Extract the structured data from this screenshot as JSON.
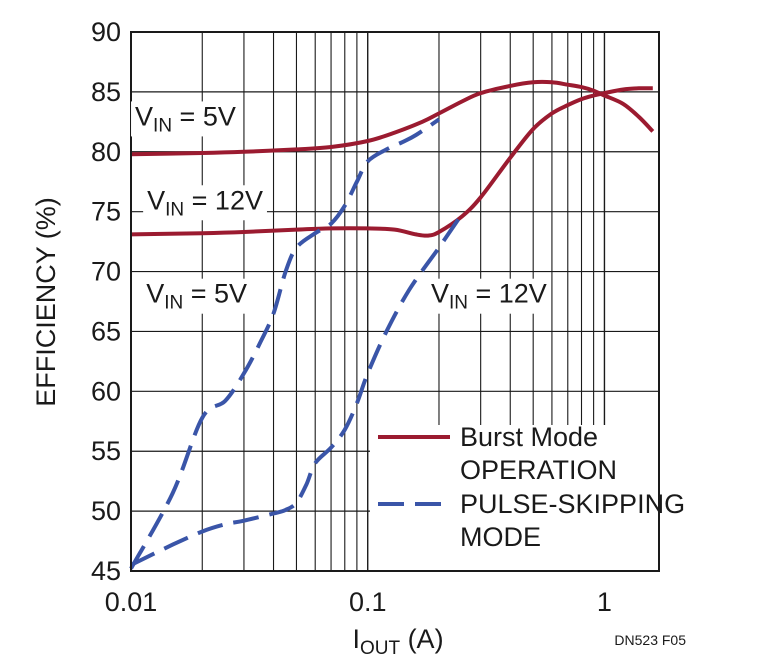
{
  "chart_data": {
    "type": "line",
    "xlabel": {
      "main": "I",
      "sub": "OUT",
      "unit": " (A)"
    },
    "ylabel": "EFFICIENCY (%)",
    "x_scale": "log",
    "xlim": [
      0.01,
      1.7
    ],
    "ylim": [
      45,
      90
    ],
    "x_ticks": [
      {
        "value": 0.01,
        "label": "0.01"
      },
      {
        "value": 0.1,
        "label": "0.1"
      },
      {
        "value": 1,
        "label": "1"
      }
    ],
    "y_ticks": [
      {
        "value": 45,
        "label": "45"
      },
      {
        "value": 50,
        "label": "50"
      },
      {
        "value": 55,
        "label": "55"
      },
      {
        "value": 60,
        "label": "60"
      },
      {
        "value": 65,
        "label": "65"
      },
      {
        "value": 70,
        "label": "70"
      },
      {
        "value": 75,
        "label": "75"
      },
      {
        "value": 80,
        "label": "80"
      },
      {
        "value": 85,
        "label": "85"
      },
      {
        "value": 90,
        "label": "90"
      }
    ],
    "grid": true,
    "legend_position": "bottom-right",
    "legend": [
      {
        "style": "solid",
        "line1": "Burst Mode",
        "line2": "OPERATION"
      },
      {
        "style": "dashed",
        "line1": "PULSE-SKIPPING",
        "line2": "MODE"
      }
    ],
    "annotations": [
      {
        "pre": "V",
        "sub": "IN",
        "post": " = 5V",
        "anchor_x": 0.0104,
        "anchor_y": 82.2
      },
      {
        "pre": "V",
        "sub": "IN",
        "post": " = 12V",
        "anchor_x": 0.0117,
        "anchor_y": 75.2
      },
      {
        "pre": "V",
        "sub": "IN",
        "post": " = 5V",
        "anchor_x": 0.0116,
        "anchor_y": 67.4
      },
      {
        "pre": "V",
        "sub": "IN",
        "post": " = 12V",
        "anchor_x": 0.185,
        "anchor_y": 67.4
      }
    ],
    "series": [
      {
        "style": "solid",
        "color": "#9b1b30",
        "x": [
          0.01,
          0.02,
          0.03,
          0.05,
          0.07,
          0.1,
          0.13,
          0.17,
          0.2,
          0.25,
          0.3,
          0.4,
          0.5,
          0.6,
          0.7,
          0.8,
          0.9,
          1.0,
          1.2,
          1.4,
          1.6
        ],
        "values": [
          79.8,
          79.9,
          80.0,
          80.2,
          80.4,
          80.9,
          81.6,
          82.5,
          83.2,
          84.2,
          84.9,
          85.5,
          85.8,
          85.8,
          85.6,
          85.4,
          85.1,
          84.7,
          84.0,
          82.9,
          81.7
        ]
      },
      {
        "style": "solid",
        "color": "#9b1b30",
        "x": [
          0.01,
          0.02,
          0.03,
          0.05,
          0.07,
          0.1,
          0.13,
          0.16,
          0.18,
          0.2,
          0.25,
          0.3,
          0.4,
          0.5,
          0.6,
          0.7,
          0.8,
          0.9,
          1.0,
          1.2,
          1.4,
          1.6
        ],
        "values": [
          73.1,
          73.2,
          73.3,
          73.5,
          73.6,
          73.6,
          73.5,
          73.1,
          73.0,
          73.3,
          74.6,
          76.2,
          79.5,
          81.9,
          83.2,
          83.9,
          84.4,
          84.7,
          84.9,
          85.2,
          85.3,
          85.3
        ]
      },
      {
        "style": "dashed",
        "color": "#3a55a8",
        "x": [
          0.01,
          0.015,
          0.02,
          0.025,
          0.03,
          0.035,
          0.04,
          0.045,
          0.05,
          0.06,
          0.07,
          0.08,
          0.09,
          0.1,
          0.12,
          0.14,
          0.16,
          0.2
        ],
        "values": [
          45.2,
          51.5,
          57.8,
          59.2,
          61.5,
          64.0,
          66.5,
          70.0,
          72.0,
          73.2,
          74.0,
          75.5,
          77.5,
          79.2,
          80.2,
          80.8,
          81.4,
          82.7
        ]
      },
      {
        "style": "dashed",
        "color": "#3a55a8",
        "x": [
          0.01,
          0.015,
          0.02,
          0.025,
          0.03,
          0.04,
          0.045,
          0.05,
          0.055,
          0.06,
          0.07,
          0.08,
          0.09,
          0.1,
          0.12,
          0.15,
          0.2,
          0.25
        ],
        "values": [
          45.5,
          47.2,
          48.3,
          48.9,
          49.2,
          49.8,
          50.1,
          50.7,
          52.2,
          54.0,
          55.3,
          56.8,
          59.0,
          61.5,
          65.0,
          68.5,
          72.0,
          74.8
        ]
      }
    ]
  },
  "figure_id": "DN523 F05"
}
